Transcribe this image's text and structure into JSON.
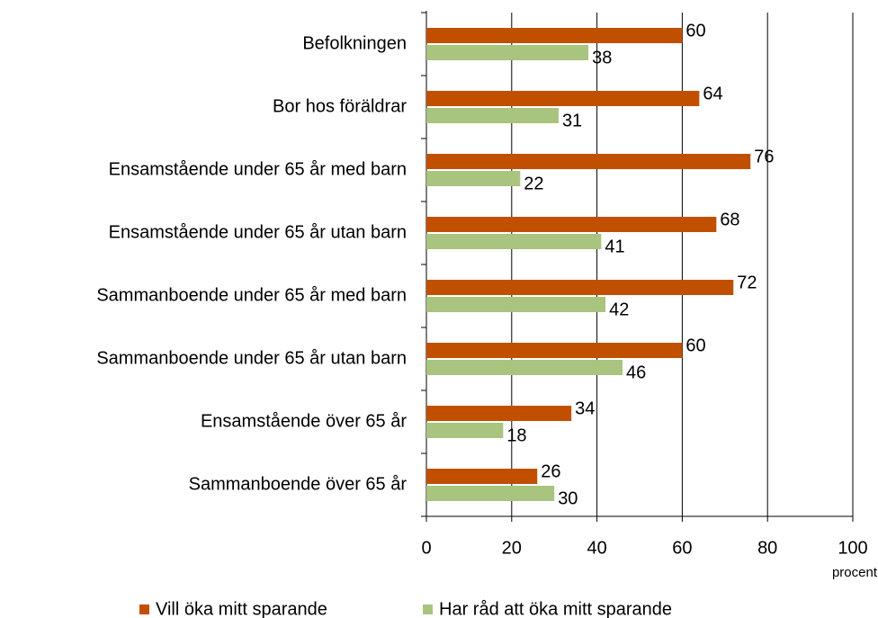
{
  "chart_data": {
    "type": "bar",
    "orientation": "horizontal",
    "categories": [
      "Befolkningen",
      "Bor hos föräldrar",
      "Ensamstående under 65 år med barn",
      "Ensamstående under 65 år utan barn",
      "Sammanboende under 65 år med barn",
      "Sammanboende under 65 år utan barn",
      "Ensamstående över 65 år",
      "Sammanboende över 65 år"
    ],
    "series": [
      {
        "name": "Vill öka mitt sparande",
        "color": "#c05000",
        "values": [
          60,
          64,
          76,
          68,
          72,
          60,
          34,
          26
        ]
      },
      {
        "name": "Har råd att öka mitt sparande",
        "color": "#a9c47f",
        "values": [
          38,
          31,
          22,
          41,
          42,
          46,
          18,
          30
        ]
      }
    ],
    "xlabel": "procent",
    "xlim": [
      0,
      100
    ],
    "xticks": [
      0,
      20,
      40,
      60,
      80,
      100
    ],
    "grid": true,
    "legend": "bottom"
  }
}
